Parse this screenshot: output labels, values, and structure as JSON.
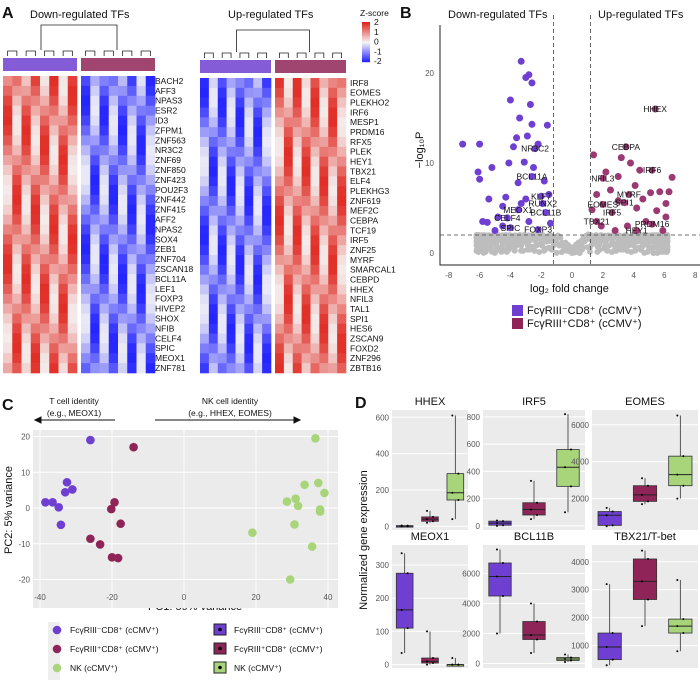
{
  "colors": {
    "purple": "#6e3fd0",
    "maroon": "#8e2457",
    "green": "#a8d57a",
    "grey": "#bdbdbd",
    "panel_bg": "#ebebeb",
    "hm_high": "#e0241c",
    "hm_low": "#1a1aff"
  },
  "panel_labels": [
    "A",
    "B",
    "C",
    "D"
  ],
  "chart_data": [
    {
      "type": "heatmap",
      "panel": "A",
      "title": "Down-regulated TFs",
      "groups": [
        "FcγRIII⁻CD8⁺ (cCMV⁺)",
        "FcγRIII⁺CD8⁺ (cCMV⁺)"
      ],
      "genes": [
        "BACH2",
        "AFF3",
        "NPAS3",
        "ESR2",
        "ID3",
        "ZFPM1",
        "ZNF563",
        "NR3C2",
        "ZNF69",
        "ZNF850",
        "ZNF423",
        "POU2F3",
        "ZNF442",
        "ZNF415",
        "AFF2",
        "NPAS2",
        "SOX4",
        "ZEB1",
        "ZNF704",
        "ZSCAN18",
        "BCL11A",
        "LEF1",
        "FOXP3",
        "HIVEP2",
        "SHOX",
        "NFIB",
        "CELF4",
        "SPIC",
        "MEOX1",
        "ZNF781"
      ],
      "group_mean_zscore": [
        1,
        -1
      ]
    },
    {
      "type": "heatmap",
      "panel": "A",
      "title": "Up-regulated TFs",
      "groups": [
        "FcγRIII⁻CD8⁺ (cCMV⁺)",
        "FcγRIII⁺CD8⁺ (cCMV⁺)"
      ],
      "genes": [
        "IRF8",
        "EOMES",
        "PLEKHO2",
        "IRF6",
        "MESP1",
        "PRDM16",
        "RFX5",
        "PLEK",
        "HEY1",
        "TBX21",
        "ELF4",
        "PLEKHG3",
        "ZNF619",
        "MEF2C",
        "CEBPA",
        "TCF19",
        "IRF5",
        "ZNF25",
        "MYRF",
        "SMARCAL1",
        "CEBPD",
        "HHEX",
        "NFIL3",
        "TAL1",
        "SPI1",
        "HES6",
        "ZSCAN9",
        "FOXD2",
        "ZNF296",
        "ZBTB16"
      ],
      "group_mean_zscore": [
        -1,
        1
      ],
      "legend": {
        "title": "Z-score",
        "ticks": [
          2,
          1,
          0,
          -1,
          -2
        ]
      }
    },
    {
      "type": "scatter",
      "panel": "B",
      "subtype": "volcano",
      "annotations": [
        "Down-regulated TFs",
        "Up-regulated TFs"
      ],
      "xlabel": "log₂ fold change",
      "ylabel": "−log₁₀P",
      "xlim": [
        -9,
        9
      ],
      "ylim": [
        -1,
        25
      ],
      "xticks": [
        -8,
        -6,
        -4,
        -2,
        0,
        2,
        4,
        6,
        8
      ],
      "yticks": [
        0,
        10,
        20
      ],
      "thresholds": {
        "log2fc": [
          -1.2,
          1.2
        ],
        "neglog10p": 2
      },
      "labeled_points": [
        {
          "gene": "HHEX",
          "x": 5.4,
          "y": 16,
          "group": "up"
        },
        {
          "gene": "CEBPA",
          "x": 3.5,
          "y": 11.8,
          "group": "up"
        },
        {
          "gene": "IRF6",
          "x": 5.2,
          "y": 9.2,
          "group": "up"
        },
        {
          "gene": "NFIL3",
          "x": 2,
          "y": 8.3,
          "group": "up"
        },
        {
          "gene": "MYRF",
          "x": 3.7,
          "y": 6.5,
          "group": "up"
        },
        {
          "gene": "SPI1",
          "x": 3.4,
          "y": 5.6,
          "group": "up"
        },
        {
          "gene": "EOMES",
          "x": 2,
          "y": 5.4,
          "group": "up"
        },
        {
          "gene": "IRF5",
          "x": 2.6,
          "y": 4.5,
          "group": "up"
        },
        {
          "gene": "TBX21",
          "x": 1.6,
          "y": 3.5,
          "group": "up"
        },
        {
          "gene": "PRDM16",
          "x": 5.2,
          "y": 3.2,
          "group": "up"
        },
        {
          "gene": "HEY1",
          "x": 4.2,
          "y": 2.5,
          "group": "up"
        },
        {
          "gene": "NR3C2",
          "x": -2.4,
          "y": 11.6,
          "group": "down"
        },
        {
          "gene": "BCL11A",
          "x": -2.6,
          "y": 8.5,
          "group": "down"
        },
        {
          "gene": "KLF7",
          "x": -2,
          "y": 6.3,
          "group": "down"
        },
        {
          "gene": "RUNX2",
          "x": -1.9,
          "y": 5.5,
          "group": "down"
        },
        {
          "gene": "MEOX1",
          "x": -3.5,
          "y": 4.8,
          "group": "down"
        },
        {
          "gene": "BCL11B",
          "x": -1.7,
          "y": 4.5,
          "group": "down"
        },
        {
          "gene": "CELF4",
          "x": -4.2,
          "y": 3.9,
          "group": "down"
        },
        {
          "gene": "SPIC",
          "x": -4,
          "y": 2.8,
          "group": "down"
        },
        {
          "gene": "FOXP3",
          "x": -2.2,
          "y": 2.6,
          "group": "down"
        }
      ],
      "other_points_down": [
        [
          -7.1,
          12.1
        ],
        [
          -6,
          12.1
        ],
        [
          -6.1,
          9
        ],
        [
          -6,
          8.2
        ],
        [
          -5.4,
          6
        ],
        [
          -5.2,
          9.5
        ],
        [
          -4.8,
          4
        ],
        [
          -4.5,
          5.2
        ],
        [
          -4.1,
          10
        ],
        [
          -4,
          17
        ],
        [
          -3.8,
          11.8
        ],
        [
          -3.6,
          12.8
        ],
        [
          -3.4,
          15
        ],
        [
          -3.3,
          21.3
        ],
        [
          -3,
          19.5
        ],
        [
          -2.8,
          19.8
        ],
        [
          -2.6,
          18.9
        ],
        [
          -2.7,
          16.5
        ],
        [
          -2.9,
          13
        ],
        [
          -2.6,
          14.3
        ],
        [
          -1.6,
          14.2
        ],
        [
          -2.2,
          12.1
        ],
        [
          -3.1,
          10.1
        ],
        [
          -3.5,
          7.8
        ],
        [
          -4.5,
          3
        ],
        [
          -5,
          2.5
        ],
        [
          -5.5,
          3.4
        ],
        [
          -3,
          6
        ],
        [
          -2.5,
          9.5
        ],
        [
          -1.8,
          8
        ],
        [
          -1.5,
          6.5
        ],
        [
          -1.4,
          3.3
        ],
        [
          -2.8,
          3.5
        ],
        [
          -3.3,
          5.5
        ],
        [
          -4.3,
          6.2
        ],
        [
          -5.8,
          3.5
        ]
      ],
      "other_points_up": [
        [
          1.4,
          10.9
        ],
        [
          3.2,
          10.6
        ],
        [
          3.8,
          10
        ],
        [
          3,
          8.5
        ],
        [
          4.4,
          9.2
        ],
        [
          6.5,
          8.4
        ],
        [
          5.7,
          6.8
        ],
        [
          6.3,
          6.8
        ],
        [
          6.1,
          5.5
        ],
        [
          5.1,
          6.7
        ],
        [
          4.1,
          7.5
        ],
        [
          2.5,
          7
        ],
        [
          1.6,
          6.5
        ],
        [
          3,
          5.8
        ],
        [
          4.2,
          5
        ],
        [
          4.8,
          3.5
        ],
        [
          5.9,
          2.5
        ],
        [
          6.1,
          4
        ],
        [
          1.9,
          3
        ],
        [
          2.8,
          2.5
        ],
        [
          3.6,
          3
        ],
        [
          4.6,
          6
        ],
        [
          5.5,
          4.7
        ],
        [
          2.2,
          9
        ],
        [
          1.3,
          4.8
        ]
      ],
      "legend": [
        "FcγRIII⁻CD8⁺ (cCMV⁺)",
        "FcγRIII⁺CD8⁺ (cCMV⁺)"
      ]
    },
    {
      "type": "scatter",
      "panel": "C",
      "subtype": "pca",
      "xlabel": "PC1: 59% variance",
      "ylabel": "PC2: 5% variance",
      "xlim": [
        -42,
        42
      ],
      "ylim": [
        -22,
        22
      ],
      "xticks": [
        -40,
        -20,
        0,
        20,
        40
      ],
      "yticks": [
        20,
        10,
        0,
        -10,
        -20
      ],
      "annotations": {
        "left": [
          "T cell identity",
          "(e.g., MEOX1)"
        ],
        "right": [
          "NK cell identity",
          "(e.g., HHEX, EOMES)"
        ]
      },
      "series": [
        {
          "name": "FcγRIII⁻CD8⁺ (cCMV⁺)",
          "color": "#6e3fd0",
          "points": [
            [
              -26,
              19
            ],
            [
              -32.5,
              7.2
            ],
            [
              -31,
              5.2
            ],
            [
              -33,
              4.4
            ],
            [
              -38.5,
              1.6
            ],
            [
              -36.5,
              1.6
            ],
            [
              -34.8,
              0.2
            ],
            [
              -34.2,
              -4.7
            ]
          ]
        },
        {
          "name": "FcγRIII⁺CD8⁺ (cCMV⁺)",
          "color": "#8e2457",
          "points": [
            [
              -14,
              17
            ],
            [
              -19.3,
              1.6
            ],
            [
              -20.2,
              -0.3
            ],
            [
              -17.6,
              -4.4
            ],
            [
              -26,
              -8.6
            ],
            [
              -23.3,
              -10.2
            ],
            [
              -20,
              -13.8
            ],
            [
              -18.3,
              -14
            ]
          ]
        },
        {
          "name": "NK (cCMV⁺)",
          "color": "#a8d57a",
          "points": [
            [
              36.5,
              19.5
            ],
            [
              33.5,
              6.5
            ],
            [
              37.3,
              7
            ],
            [
              39,
              4.2
            ],
            [
              28.6,
              1.8
            ],
            [
              31,
              2.6
            ],
            [
              31.7,
              0.6
            ],
            [
              37.8,
              -0.4
            ],
            [
              37.8,
              -1
            ],
            [
              30.7,
              -4.6
            ],
            [
              19,
              -6.9
            ],
            [
              35.6,
              -10.8
            ],
            [
              29.5,
              -20
            ]
          ]
        }
      ],
      "box_legend": [
        "FcγRIII⁻CD8⁺ (cCMV⁺)",
        "FcγRIII⁺CD8⁺ (cCMV⁺)",
        "NK (cCMV⁺)"
      ]
    },
    {
      "type": "box",
      "panel": "D",
      "ylabel": "Normalized gene expression",
      "groups": [
        "FcγRIII⁻CD8⁺ (cCMV⁺)",
        "FcγRIII⁺CD8⁺ (cCMV⁺)",
        "NK (cCMV⁺)"
      ],
      "panels": [
        {
          "title": "HHEX",
          "ylim": [
            -20,
            640
          ],
          "yticks": [
            0,
            200,
            400,
            600
          ],
          "boxes": [
            [
              0,
              0,
              2,
              4,
              5
            ],
            [
              20,
              28,
              40,
              52,
              85
            ],
            [
              40,
              145,
              185,
              290,
              610
            ]
          ]
        },
        {
          "title": "IRF5",
          "ylim": [
            -30,
            850
          ],
          "yticks": [
            0,
            200,
            400,
            600,
            800
          ],
          "boxes": [
            [
              0,
              5,
              20,
              35,
              40
            ],
            [
              50,
              80,
              120,
              170,
              330
            ],
            [
              100,
              290,
              430,
              560,
              820
            ]
          ]
        },
        {
          "title": "EOMES",
          "ylim": [
            300,
            6800
          ],
          "yticks": [
            2000,
            4000,
            6000
          ],
          "boxes": [
            [
              500,
              550,
              1100,
              1300,
              1500
            ],
            [
              1700,
              1850,
              2200,
              2700,
              3100
            ],
            [
              2000,
              2700,
              3300,
              4300,
              6500
            ]
          ]
        },
        {
          "title": "MEOX1",
          "ylim": [
            -10,
            360
          ],
          "yticks": [
            0,
            100,
            200,
            300
          ],
          "boxes": [
            [
              35,
              110,
              165,
              275,
              335
            ],
            [
              0,
              5,
              10,
              20,
              100
            ],
            [
              0,
              0,
              0,
              0,
              20
            ]
          ]
        },
        {
          "title": "BCL11B",
          "ylim": [
            -300,
            7900
          ],
          "yticks": [
            0,
            2000,
            4000,
            6000
          ],
          "boxes": [
            [
              2000,
              4500,
              5800,
              6700,
              7600
            ],
            [
              700,
              1600,
              1900,
              2800,
              4000
            ],
            [
              100,
              200,
              300,
              400,
              600
            ]
          ]
        },
        {
          "title": "TBX21/T-bet",
          "ylim": [
            200,
            4600
          ],
          "yticks": [
            1000,
            2000,
            3000,
            4000
          ],
          "boxes": [
            [
              300,
              500,
              950,
              1450,
              3200
            ],
            [
              1700,
              2650,
              3300,
              4100,
              4400
            ],
            [
              800,
              1450,
              1700,
              1950,
              3350
            ]
          ]
        }
      ]
    }
  ]
}
